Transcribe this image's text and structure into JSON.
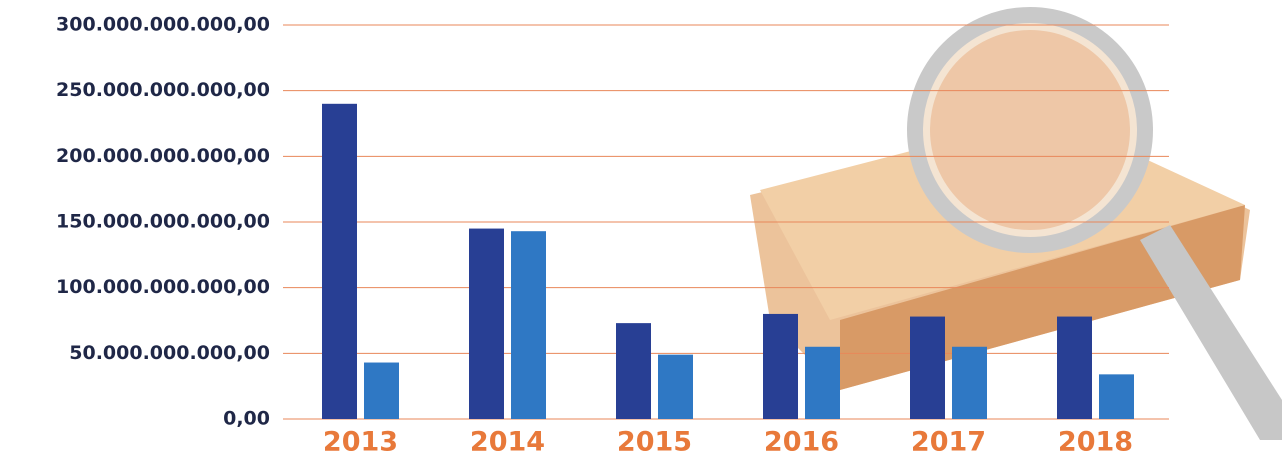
{
  "chart_data": {
    "type": "bar",
    "categories": [
      "2013",
      "2014",
      "2015",
      "2016",
      "2017",
      "2018"
    ],
    "series": [
      {
        "color": "#283f94",
        "values": [
          240000000000,
          145000000000,
          73000000000,
          80000000000,
          78000000000,
          78000000000
        ]
      },
      {
        "color": "#2f78c4",
        "values": [
          43000000000,
          143000000000,
          49000000000,
          55000000000,
          55000000000,
          34000000000
        ]
      }
    ],
    "ylim": [
      0,
      300000000000
    ],
    "yticks": [
      {
        "value": 0,
        "label": "0,00"
      },
      {
        "value": 50000000000,
        "label": "50.000.000.000,00"
      },
      {
        "value": 100000000000,
        "label": "100.000.000.000,00"
      },
      {
        "value": 150000000000,
        "label": "150.000.000.000,00"
      },
      {
        "value": 200000000000,
        "label": "200.000.000.000,00"
      },
      {
        "value": 250000000000,
        "label": "250.000.000.000,00"
      },
      {
        "value": 300000000000,
        "label": "300.000.000.000,00"
      }
    ],
    "grid": true,
    "grid_color": "#e8875a"
  }
}
